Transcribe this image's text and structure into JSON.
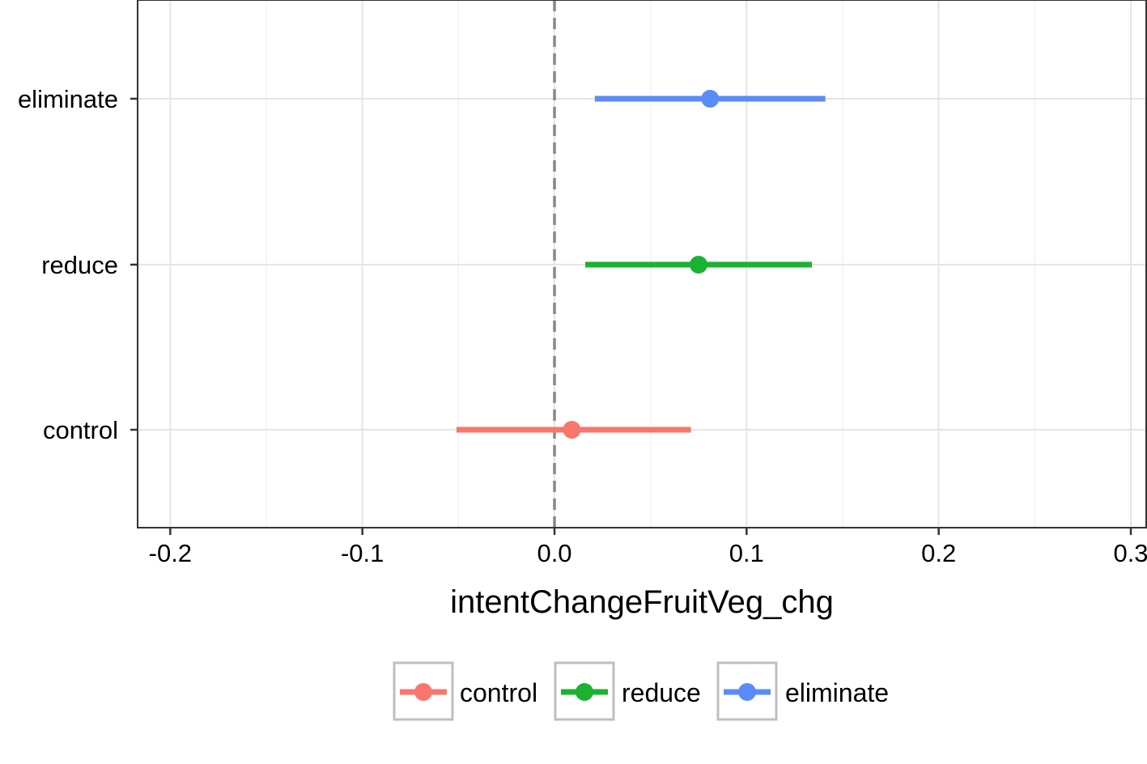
{
  "chart_data": {
    "type": "dot-interval",
    "title": "",
    "xlabel": "intentChangeFruitVeg_chg",
    "ylabel": "",
    "xlim": [
      -0.217,
      0.308
    ],
    "x_ticks": [
      -0.2,
      -0.1,
      0.0,
      0.1,
      0.2,
      0.3
    ],
    "x_tick_labels": [
      "-0.2",
      "-0.1",
      "0.0",
      "0.1",
      "0.2",
      "0.3"
    ],
    "categories": [
      "eliminate",
      "reduce",
      "control"
    ],
    "series": [
      {
        "name": "control",
        "estimate": 0.009,
        "lower": -0.051,
        "upper": 0.071,
        "color": "#F8766D"
      },
      {
        "name": "reduce",
        "estimate": 0.075,
        "lower": 0.016,
        "upper": 0.134,
        "color": "#1BB232"
      },
      {
        "name": "eliminate",
        "estimate": 0.081,
        "lower": 0.021,
        "upper": 0.141,
        "color": "#5B8BF6"
      }
    ],
    "reference_line": {
      "x": 0.0,
      "style": "dashed",
      "color": "#888888"
    },
    "grid": true,
    "legend": {
      "position": "bottom",
      "entries": [
        "control",
        "reduce",
        "eliminate"
      ]
    }
  }
}
